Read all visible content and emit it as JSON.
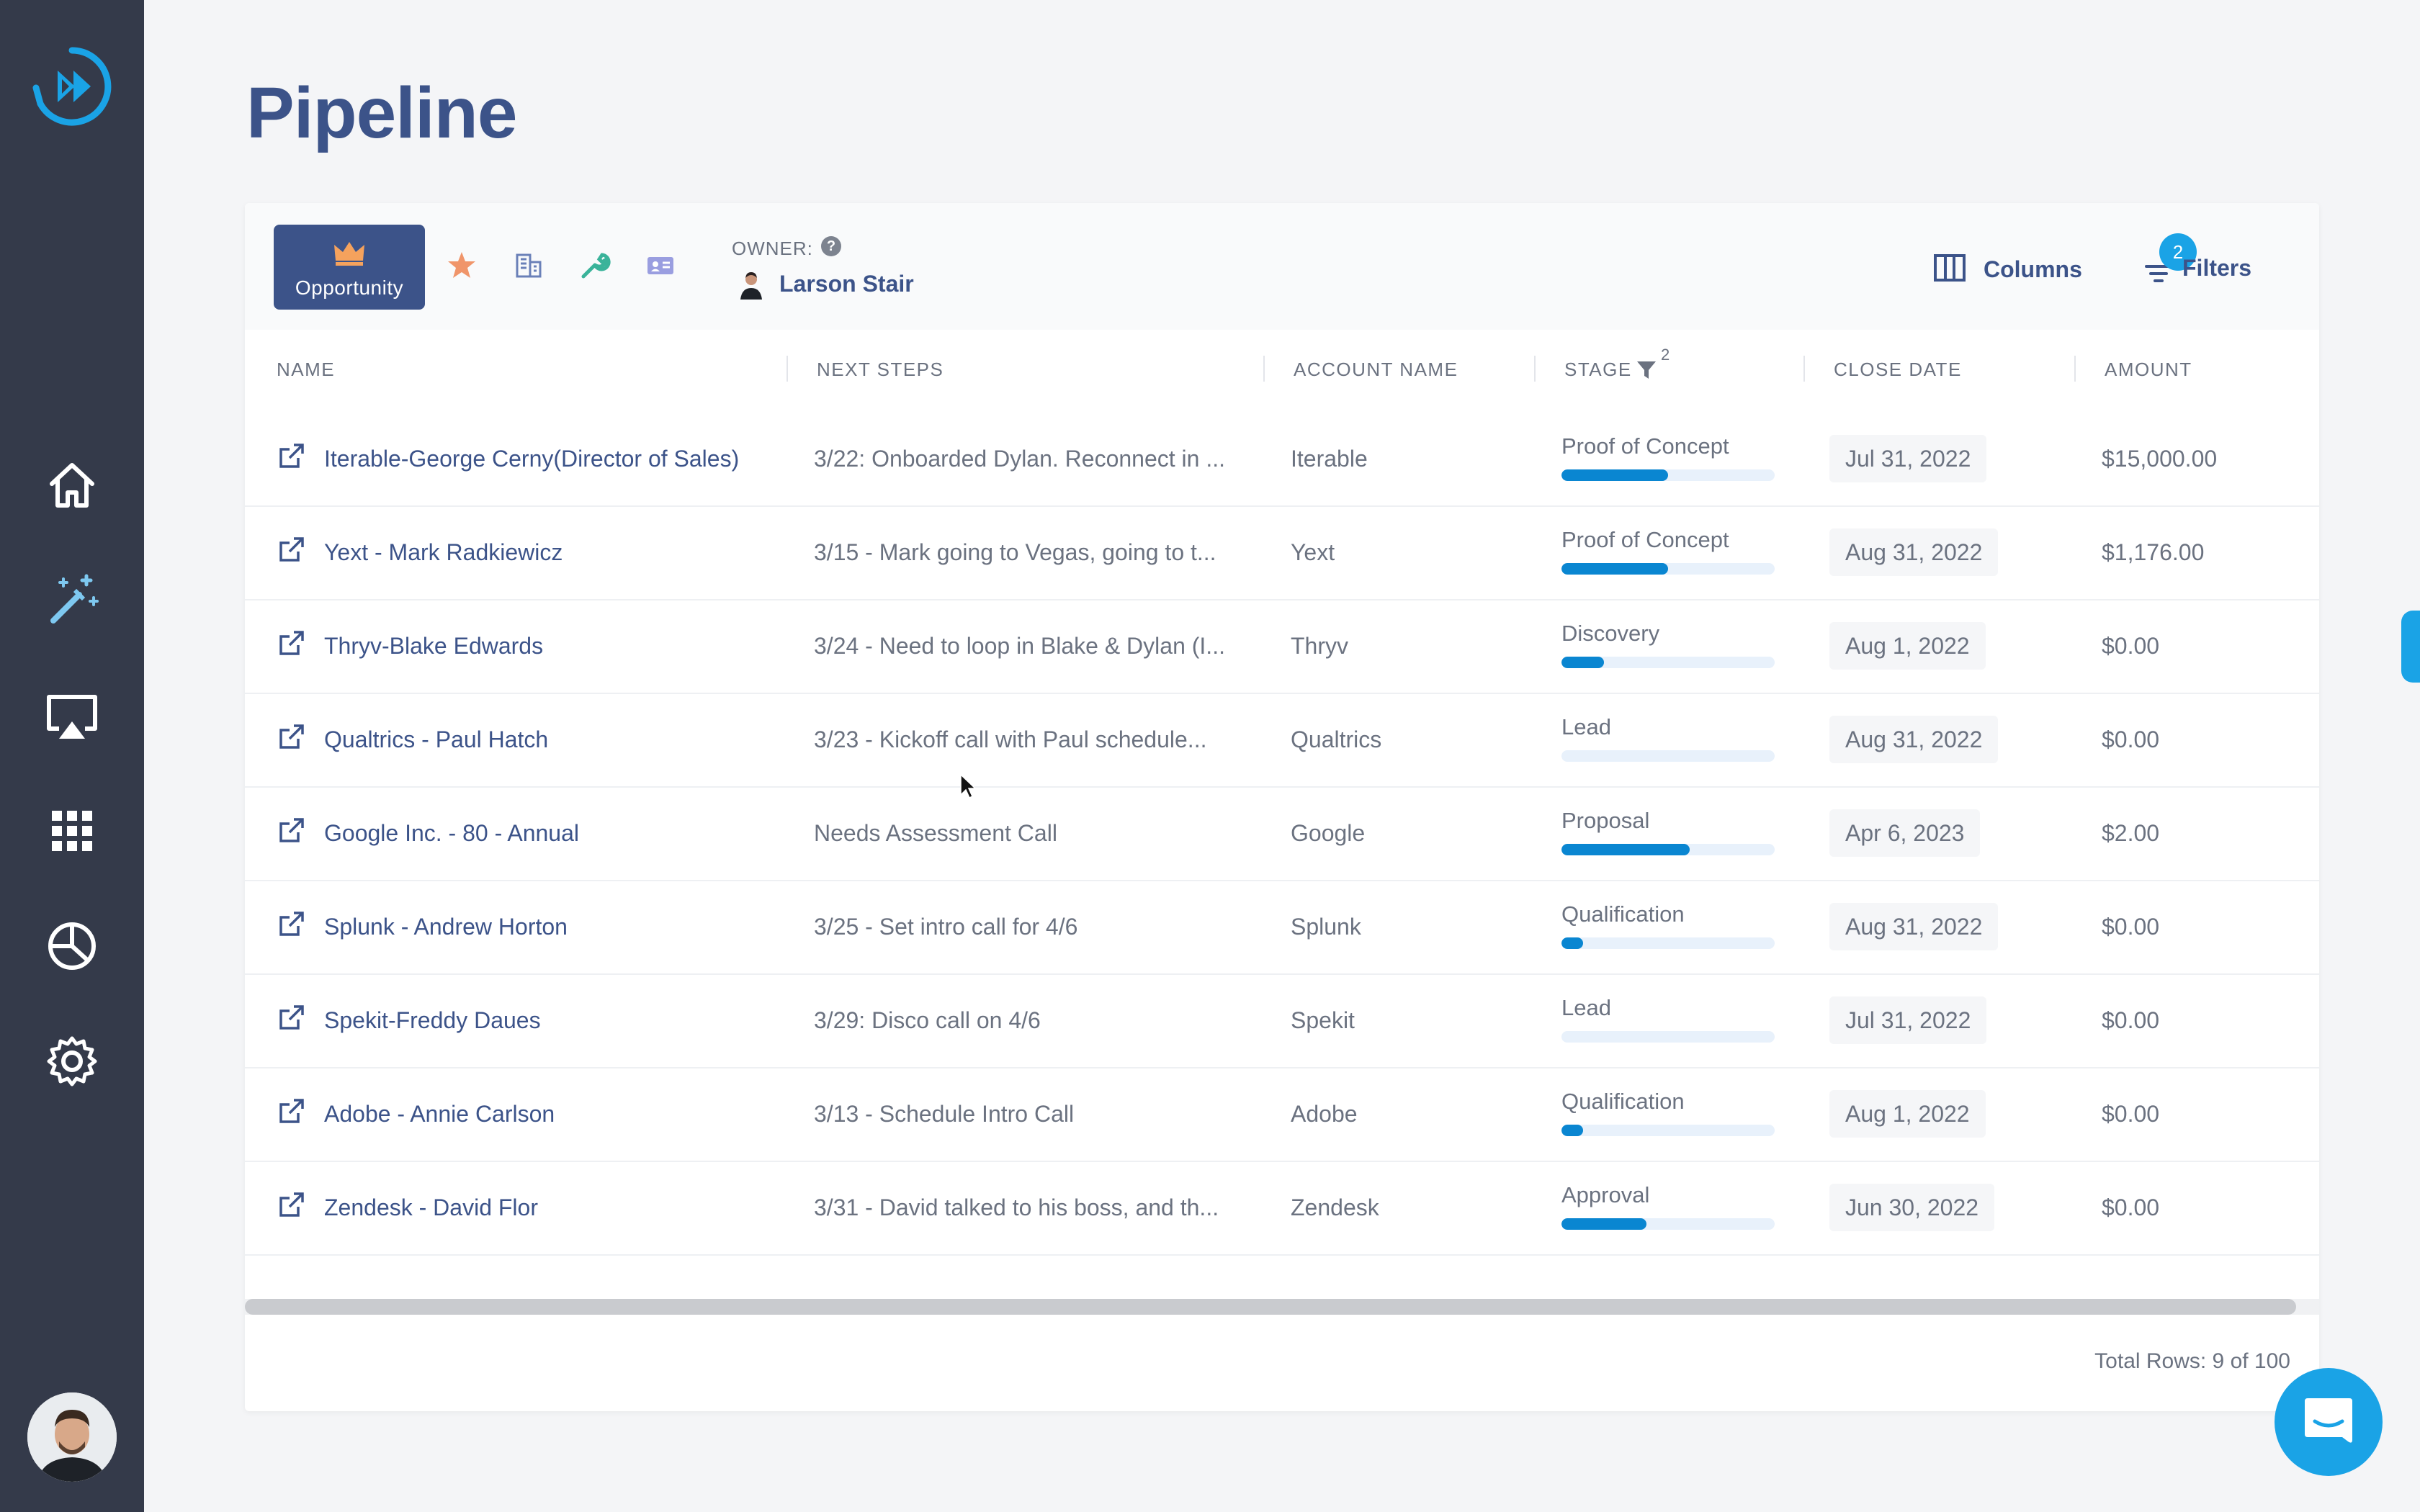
{
  "page": {
    "title": "Pipeline"
  },
  "sidebar": {
    "logo": "app-logo",
    "items": [
      {
        "icon": "home-icon"
      },
      {
        "icon": "magic-wand-icon"
      },
      {
        "icon": "presentation-icon"
      },
      {
        "icon": "apps-grid-icon"
      },
      {
        "icon": "pie-chart-icon"
      },
      {
        "icon": "gear-icon"
      }
    ],
    "avatar": "user-avatar"
  },
  "toolbar": {
    "active_tab": "Opportunity",
    "tab_icons": [
      "crown-icon",
      "star-person-icon",
      "building-icon",
      "wrench-icon",
      "contact-card-icon"
    ],
    "owner_label": "OWNER:",
    "owner_help": "?",
    "owner_name": "Larson Stair",
    "columns_label": "Columns",
    "filters_label": "Filters",
    "filters_count": "2"
  },
  "table": {
    "columns": [
      "NAME",
      "NEXT STEPS",
      "ACCOUNT NAME",
      "STAGE",
      "CLOSE DATE",
      "AMOUNT"
    ],
    "stage_filter_count": "2",
    "rows": [
      {
        "name": "Iterable-George Cerny(Director of Sales)",
        "next": "3/22: Onboarded Dylan. Reconnect in ...",
        "account": "Iterable",
        "stage": "Proof of Concept",
        "progress": 0.5,
        "close": "Jul 31, 2022",
        "amount": "$15,000.00"
      },
      {
        "name": "Yext - Mark Radkiewicz",
        "next": "3/15 - Mark going to Vegas, going to t...",
        "account": "Yext",
        "stage": "Proof of Concept",
        "progress": 0.5,
        "close": "Aug 31, 2022",
        "amount": "$1,176.00"
      },
      {
        "name": "Thryv-Blake Edwards",
        "next": "3/24 - Need to loop in Blake & Dylan (I...",
        "account": "Thryv",
        "stage": "Discovery",
        "progress": 0.2,
        "close": "Aug 1, 2022",
        "amount": "$0.00"
      },
      {
        "name": "Qualtrics - Paul Hatch",
        "next": "3/23 - Kickoff call with Paul schedule...",
        "account": "Qualtrics",
        "stage": "Lead",
        "progress": 0,
        "close": "Aug 31, 2022",
        "amount": "$0.00"
      },
      {
        "name": "Google Inc. - 80 - Annual",
        "next": "Needs Assessment Call",
        "account": "Google",
        "stage": "Proposal",
        "progress": 0.6,
        "close": "Apr 6, 2023",
        "amount": "$2.00"
      },
      {
        "name": "Splunk - Andrew Horton",
        "next": "3/25 - Set intro call for 4/6",
        "account": "Splunk",
        "stage": "Qualification",
        "progress": 0.1,
        "close": "Aug 31, 2022",
        "amount": "$0.00"
      },
      {
        "name": "Spekit-Freddy Daues",
        "next": "3/29: Disco call on 4/6",
        "account": "Spekit",
        "stage": "Lead",
        "progress": 0,
        "close": "Jul 31, 2022",
        "amount": "$0.00"
      },
      {
        "name": "Adobe - Annie Carlson",
        "next": "3/13 - Schedule Intro Call",
        "account": "Adobe",
        "stage": "Qualification",
        "progress": 0.1,
        "close": "Aug 1, 2022",
        "amount": "$0.00"
      },
      {
        "name": "Zendesk - David Flor",
        "next": "3/31 - David talked to his boss, and th...",
        "account": "Zendesk",
        "stage": "Approval",
        "progress": 0.4,
        "close": "Jun 30, 2022",
        "amount": "$0.00"
      }
    ],
    "total_rows": "Total Rows: 9 of 100"
  },
  "colors": {
    "sidebar": "#343a4a",
    "accent": "#3c5389",
    "progress": "#0a86d1",
    "chat": "#1aa3e6"
  }
}
